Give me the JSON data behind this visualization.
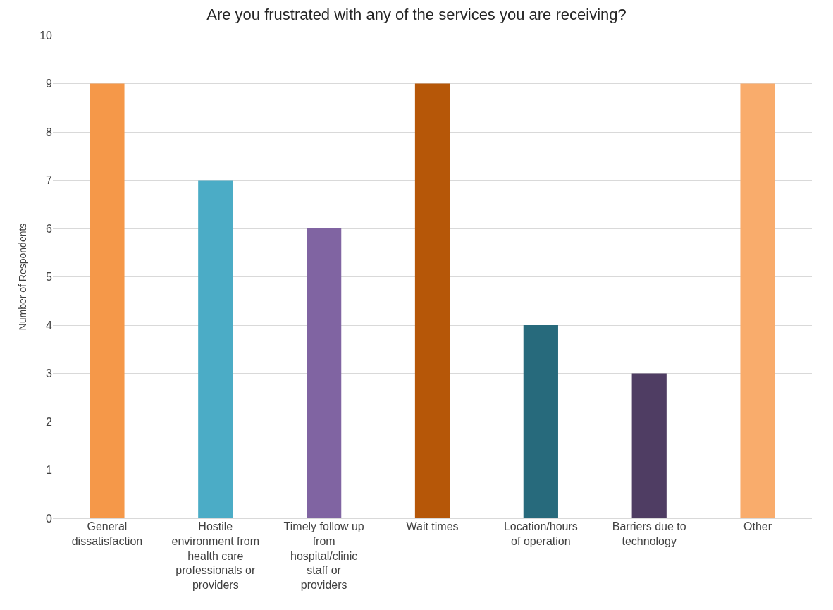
{
  "chart_data": {
    "type": "bar",
    "title": "Are you frustrated with any of the services you are receiving?",
    "ylabel": "Number of Respondents",
    "categories": [
      "General dissatisfaction",
      "Hostile environment from health care professionals or providers",
      "Timely follow up from hospital/clinic staff or providers",
      "Wait times",
      "Location/hours of operation",
      "Barriers due to technology",
      "Other"
    ],
    "values": [
      9,
      7,
      6,
      9,
      4,
      3,
      9
    ],
    "colors": [
      "#f59849",
      "#4bacc6",
      "#8064a2",
      "#b65708",
      "#276a7c",
      "#4f3d63",
      "#f9ac6c"
    ],
    "ylim": [
      0,
      10
    ],
    "yticks": [
      0,
      1,
      2,
      3,
      4,
      5,
      6,
      7,
      8,
      9,
      10
    ],
    "grid": "y"
  }
}
